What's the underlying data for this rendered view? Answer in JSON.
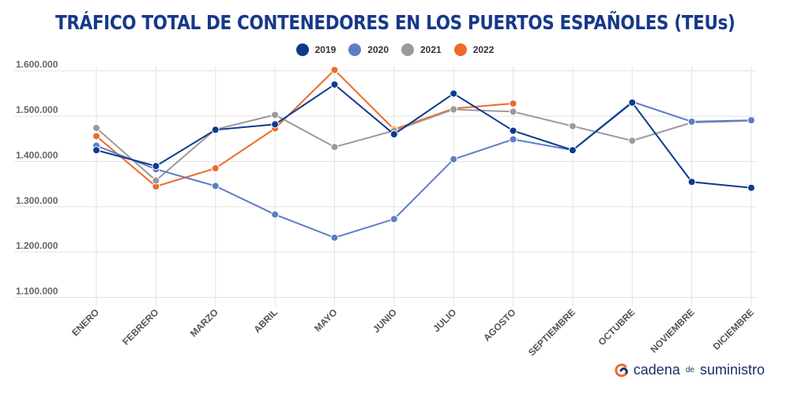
{
  "chart_data": {
    "type": "line",
    "title": "TRÁFICO TOTAL DE CONTENEDORES EN LOS PUERTOS ESPAÑOLES (TEUs)",
    "xlabel": "",
    "ylabel": "",
    "categories": [
      "ENERO",
      "FEBRERO",
      "MARZO",
      "ABRIL",
      "MAYO",
      "JUNIO",
      "JULIO",
      "AGOSTO",
      "SEPTIEMBRE",
      "OCTUBRE",
      "NOVIEMBRE",
      "DICIEMBRE"
    ],
    "ylim": [
      1080000,
      1610000
    ],
    "yticks": [
      1100000,
      1200000,
      1300000,
      1400000,
      1500000,
      1600000
    ],
    "ytick_labels": [
      "1.100.000",
      "1.200.000",
      "1.300.000",
      "1.400.000",
      "1.500.000",
      "1.600.000"
    ],
    "grid": true,
    "legend_position": "top-center",
    "series": [
      {
        "name": "2019",
        "color": "#0d3a8e",
        "values": [
          1425000,
          1390000,
          1470000,
          1482000,
          1570000,
          1460000,
          1550000,
          1468000,
          1425000,
          1530000,
          1355000,
          1342000
        ]
      },
      {
        "name": "2020",
        "color": "#5b7ec4",
        "values": [
          1435000,
          1383000,
          1346000,
          1283000,
          1232000,
          1273000,
          1405000,
          1449000,
          1425000,
          1532000,
          1488000,
          1491000
        ]
      },
      {
        "name": "2021",
        "color": "#9a9a9a",
        "values": [
          1474000,
          1358000,
          1471000,
          1503000,
          1432000,
          1468000,
          1515000,
          1510000,
          1478000,
          1446000,
          1486000,
          1490000
        ]
      },
      {
        "name": "2022",
        "color": "#ee6a2c",
        "values": [
          1456000,
          1345000,
          1385000,
          1473000,
          1602000,
          1471000,
          1517000,
          1528000,
          null,
          null,
          null,
          null
        ]
      }
    ]
  },
  "brand": {
    "part1": "cadena",
    "part2": "de",
    "part3": "suministro",
    "logo_icon": "cadena-de-suministro-logo-icon",
    "accent_orange": "#ee6a2c",
    "accent_navy": "#1b2f6b"
  }
}
